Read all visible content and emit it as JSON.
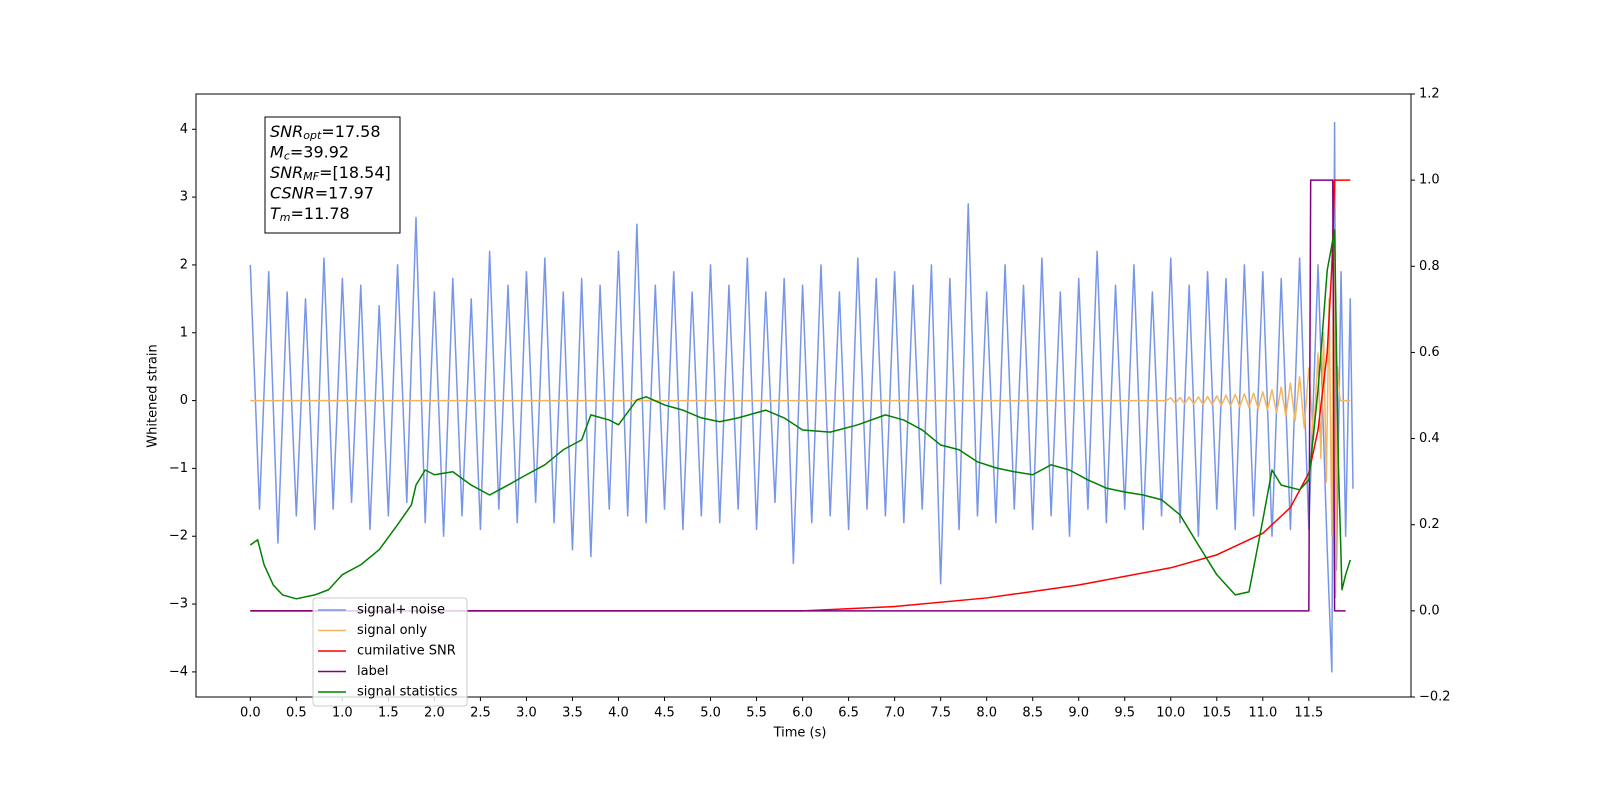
{
  "chart_data": {
    "type": "line",
    "xlabel": "Time (s)",
    "ylabel": "Whitened strain",
    "xlim": [
      -0.59,
      12.61
    ],
    "ylim": [
      -4.37,
      4.52
    ],
    "y2lim": [
      -0.2,
      1.2
    ],
    "xticks": [
      {
        "value": 0,
        "label": "0.0"
      },
      0.5,
      {
        "value": 1,
        "label": "1.0"
      },
      1.5,
      {
        "value": 2,
        "label": "2.0"
      },
      2.5,
      {
        "value": 3,
        "label": "3.0"
      },
      3.5,
      {
        "value": 4,
        "label": "4.0"
      },
      4.5,
      {
        "value": 5,
        "label": "5.0"
      },
      5.5,
      {
        "value": 6,
        "label": "6.0"
      },
      6.5,
      {
        "value": 7,
        "label": "7.0"
      },
      7.5,
      {
        "value": 8,
        "label": "8.0"
      },
      8.5,
      {
        "value": 9,
        "label": "9.0"
      },
      9.5,
      {
        "value": 10,
        "label": "10.0"
      },
      10.5,
      {
        "value": 11,
        "label": "11.0"
      },
      11.5
    ],
    "yticks": [
      {
        "value": -4,
        "label": "−4"
      },
      {
        "value": -3,
        "label": "−3"
      },
      {
        "value": -2,
        "label": "−2"
      },
      {
        "value": -1,
        "label": "−1"
      },
      0,
      1,
      2,
      3,
      4
    ],
    "y2ticks": [
      {
        "value": -0.2,
        "label": "−0.2"
      },
      {
        "value": 0,
        "label": "0.0"
      },
      0.2,
      0.4,
      0.6,
      0.8,
      {
        "value": 1,
        "label": "1.0"
      },
      1.2
    ],
    "legend": "lower left",
    "annotations": [
      {
        "symbol": "SNR",
        "subscript": "opt",
        "text": "=17.58"
      },
      {
        "symbol": "M",
        "subscript": "c",
        "text": "=39.92"
      },
      {
        "symbol": "SNR",
        "subscript": "MF",
        "text": "=[18.54]"
      },
      {
        "symbol": "CSNR",
        "subscript": "",
        "text": "=17.97"
      },
      {
        "symbol": "T",
        "subscript": "m",
        "text": "=11.78"
      }
    ],
    "series": [
      {
        "name": "signal+ noise",
        "color": "#7896e8",
        "axis": "y",
        "x": [
          0.0,
          0.1,
          0.2,
          0.3,
          0.4,
          0.5,
          0.6,
          0.7,
          0.8,
          0.9,
          1.0,
          1.1,
          1.2,
          1.3,
          1.4,
          1.5,
          1.6,
          1.7,
          1.8,
          1.9,
          2.0,
          2.1,
          2.2,
          2.3,
          2.4,
          2.5,
          2.6,
          2.7,
          2.8,
          2.9,
          3.0,
          3.1,
          3.2,
          3.3,
          3.4,
          3.5,
          3.6,
          3.7,
          3.8,
          3.9,
          4.0,
          4.1,
          4.2,
          4.3,
          4.4,
          4.5,
          4.6,
          4.7,
          4.8,
          4.9,
          5.0,
          5.1,
          5.2,
          5.3,
          5.4,
          5.5,
          5.6,
          5.7,
          5.8,
          5.9,
          6.0,
          6.1,
          6.2,
          6.3,
          6.4,
          6.5,
          6.6,
          6.7,
          6.8,
          6.9,
          7.0,
          7.1,
          7.2,
          7.3,
          7.4,
          7.5,
          7.6,
          7.7,
          7.8,
          7.9,
          8.0,
          8.1,
          8.2,
          8.3,
          8.4,
          8.5,
          8.6,
          8.7,
          8.8,
          8.9,
          9.0,
          9.1,
          9.2,
          9.3,
          9.4,
          9.5,
          9.6,
          9.7,
          9.8,
          9.9,
          10.0,
          10.1,
          10.2,
          10.3,
          10.4,
          10.5,
          10.6,
          10.7,
          10.8,
          10.9,
          11.0,
          11.1,
          11.2,
          11.3,
          11.4,
          11.5,
          11.6,
          11.7,
          11.75,
          11.78,
          11.8,
          11.85,
          11.9,
          11.95,
          11.98
        ],
        "values": [
          2.0,
          -1.6,
          1.9,
          -2.1,
          1.6,
          -1.7,
          1.5,
          -1.9,
          2.1,
          -1.6,
          1.8,
          -1.5,
          1.7,
          -1.9,
          1.4,
          -1.7,
          2.0,
          -1.5,
          2.7,
          -1.8,
          1.6,
          -2.0,
          1.8,
          -1.7,
          1.5,
          -1.9,
          2.2,
          -1.6,
          1.7,
          -1.8,
          1.9,
          -1.5,
          2.1,
          -1.8,
          1.6,
          -2.2,
          1.8,
          -2.3,
          1.7,
          -1.6,
          2.2,
          -1.7,
          2.6,
          -1.8,
          1.7,
          -1.6,
          1.9,
          -1.9,
          1.6,
          -1.7,
          2.0,
          -1.8,
          1.7,
          -1.6,
          2.1,
          -1.9,
          1.6,
          -1.5,
          1.8,
          -2.4,
          1.7,
          -1.8,
          2.0,
          -1.7,
          1.6,
          -1.9,
          2.1,
          -1.6,
          1.8,
          -1.7,
          1.9,
          -1.8,
          1.7,
          -1.6,
          2.0,
          -2.7,
          1.8,
          -1.9,
          2.9,
          -1.7,
          1.6,
          -1.8,
          2.0,
          -1.6,
          1.7,
          -1.9,
          2.1,
          -1.7,
          1.6,
          -2.0,
          1.8,
          -1.6,
          2.2,
          -1.8,
          1.7,
          -1.6,
          2.0,
          -1.9,
          1.6,
          -1.7,
          2.1,
          -1.8,
          1.7,
          -2.0,
          1.9,
          -1.6,
          1.8,
          -1.9,
          2.0,
          -1.7,
          1.9,
          -2.0,
          1.8,
          -1.9,
          2.1,
          -1.9,
          2.0,
          -2.2,
          -4.0,
          4.1,
          -2.5,
          1.9,
          -2.0,
          1.5,
          -1.3
        ]
      },
      {
        "name": "signal only",
        "color": "#f5b560",
        "axis": "y",
        "x": [
          0.0,
          9.95,
          10.0,
          10.05,
          10.1,
          10.15,
          10.2,
          10.25,
          10.3,
          10.35,
          10.4,
          10.45,
          10.5,
          10.55,
          10.6,
          10.65,
          10.7,
          10.75,
          10.8,
          10.85,
          10.9,
          10.95,
          11.0,
          11.05,
          11.1,
          11.15,
          11.2,
          11.25,
          11.3,
          11.35,
          11.4,
          11.45,
          11.5,
          11.55,
          11.6,
          11.63,
          11.66,
          11.69,
          11.72,
          11.75,
          11.77,
          11.79,
          11.81,
          11.84,
          11.95
        ],
        "values": [
          0,
          0,
          0.04,
          -0.04,
          0.045,
          -0.045,
          0.05,
          -0.05,
          0.055,
          -0.055,
          0.06,
          -0.06,
          0.07,
          -0.07,
          0.08,
          -0.08,
          0.09,
          -0.09,
          0.1,
          -0.1,
          0.11,
          -0.12,
          0.13,
          -0.14,
          0.16,
          -0.18,
          0.2,
          -0.23,
          0.26,
          -0.3,
          0.35,
          -0.4,
          0.48,
          -0.58,
          0.7,
          -0.85,
          1.0,
          -1.2,
          1.5,
          -2.0,
          2.5,
          -2.9,
          0.5,
          0,
          0
        ]
      },
      {
        "name": "cumilative SNR",
        "color": "#ff0000",
        "axis": "y2",
        "x": [
          0,
          6.0,
          7.0,
          8.0,
          9.0,
          10.0,
          10.5,
          11.0,
          11.3,
          11.5,
          11.6,
          11.7,
          11.75,
          11.78,
          11.95
        ],
        "values": [
          0,
          0,
          0.01,
          0.03,
          0.06,
          0.1,
          0.13,
          0.18,
          0.24,
          0.32,
          0.42,
          0.6,
          0.8,
          1.0,
          1.0
        ]
      },
      {
        "name": "label",
        "color": "#800080",
        "axis": "y2",
        "x": [
          0,
          11.5,
          11.52,
          11.76,
          11.78,
          11.9
        ],
        "values": [
          0,
          0,
          1,
          1,
          0,
          0
        ]
      },
      {
        "name": "signal statistics",
        "color": "#008000",
        "axis": "y2",
        "x": [
          0,
          0.08,
          0.15,
          0.25,
          0.35,
          0.5,
          0.7,
          0.85,
          1.0,
          1.2,
          1.4,
          1.6,
          1.75,
          1.8,
          1.9,
          2.0,
          2.2,
          2.4,
          2.6,
          2.8,
          3.0,
          3.2,
          3.4,
          3.6,
          3.7,
          3.9,
          4.0,
          4.2,
          4.3,
          4.5,
          4.7,
          4.9,
          5.1,
          5.3,
          5.6,
          5.8,
          6.0,
          6.3,
          6.6,
          6.9,
          7.1,
          7.3,
          7.5,
          7.7,
          7.9,
          8.1,
          8.3,
          8.5,
          8.7,
          8.9,
          9.1,
          9.3,
          9.5,
          9.7,
          9.9,
          10.1,
          10.3,
          10.5,
          10.7,
          10.85,
          11.0,
          11.1,
          11.2,
          11.4,
          11.5,
          11.6,
          11.7,
          11.78,
          11.82,
          11.86,
          11.9,
          11.95
        ],
        "values": [
          0.153,
          0.165,
          0.107,
          0.06,
          0.037,
          0.028,
          0.037,
          0.049,
          0.084,
          0.107,
          0.142,
          0.2,
          0.246,
          0.292,
          0.327,
          0.316,
          0.323,
          0.292,
          0.269,
          0.292,
          0.316,
          0.339,
          0.374,
          0.397,
          0.455,
          0.443,
          0.432,
          0.49,
          0.497,
          0.478,
          0.466,
          0.448,
          0.439,
          0.448,
          0.466,
          0.448,
          0.42,
          0.415,
          0.432,
          0.455,
          0.443,
          0.42,
          0.385,
          0.374,
          0.346,
          0.332,
          0.323,
          0.316,
          0.339,
          0.327,
          0.304,
          0.285,
          0.276,
          0.269,
          0.258,
          0.223,
          0.153,
          0.084,
          0.037,
          0.044,
          0.211,
          0.327,
          0.292,
          0.281,
          0.304,
          0.513,
          0.791,
          0.884,
          0.35,
          0.049,
          0.084,
          0.118
        ]
      }
    ]
  }
}
